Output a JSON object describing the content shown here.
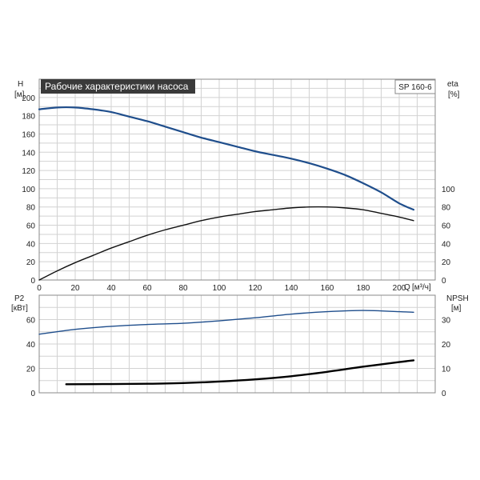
{
  "chart_data": [
    {
      "type": "line",
      "title": "Рабочие характеристики насоса",
      "model": "SP 160-6",
      "xlabel": "Q",
      "xunit": "[м³/ч]",
      "xlim": [
        0,
        220
      ],
      "xticks": [
        0,
        20,
        40,
        60,
        80,
        100,
        120,
        140,
        160,
        180,
        200
      ],
      "ylabel_left": "H",
      "yunit_left": "[м]",
      "ylim_left": [
        0,
        220
      ],
      "yticks_left": [
        0,
        20,
        40,
        60,
        80,
        100,
        120,
        140,
        160,
        180,
        200
      ],
      "ylabel_right": "eta",
      "yunit_right": "[%]",
      "ylim_right": [
        0,
        220
      ],
      "yticks_right": [
        0,
        20,
        40,
        60,
        80,
        100
      ],
      "grid": true,
      "series": [
        {
          "axis": "left",
          "color": "#1f4e8c",
          "x": [
            0,
            10,
            20,
            30,
            40,
            50,
            60,
            70,
            80,
            90,
            100,
            110,
            120,
            130,
            140,
            150,
            160,
            170,
            180,
            190,
            200,
            208
          ],
          "y": [
            187,
            189,
            189,
            187,
            184,
            179,
            174,
            168,
            162,
            156,
            151,
            146,
            141,
            137,
            133,
            128,
            122,
            115,
            106,
            96,
            84,
            77
          ]
        },
        {
          "axis": "right",
          "color": "#111111",
          "x": [
            0,
            10,
            20,
            30,
            40,
            50,
            60,
            70,
            80,
            90,
            100,
            110,
            120,
            130,
            140,
            150,
            160,
            170,
            180,
            190,
            200,
            208
          ],
          "y": [
            0,
            10,
            19,
            27,
            35,
            42,
            49,
            55,
            60,
            65,
            69,
            72,
            75,
            77,
            79,
            80,
            80,
            79,
            77,
            73,
            69,
            65
          ]
        }
      ]
    },
    {
      "type": "line",
      "xlim": [
        0,
        220
      ],
      "ylabel_left": "P2",
      "yunit_left": "[кВт]",
      "ylim_left": [
        0,
        80
      ],
      "yticks_left": [
        0,
        20,
        40,
        60
      ],
      "ylabel_right": "NPSH",
      "yunit_right": "[м]",
      "ylim_right": [
        0,
        40
      ],
      "yticks_right": [
        0,
        10,
        20,
        30
      ],
      "grid": true,
      "series": [
        {
          "axis": "left",
          "color": "#1f4e8c",
          "x": [
            0,
            20,
            40,
            60,
            80,
            100,
            120,
            140,
            160,
            180,
            200,
            208
          ],
          "y": [
            48,
            52,
            54.5,
            56,
            57,
            59,
            61.5,
            64.5,
            66.5,
            67.5,
            66.5,
            66
          ]
        },
        {
          "axis": "right",
          "color": "#000000",
          "x": [
            15,
            40,
            60,
            80,
            100,
            120,
            140,
            160,
            180,
            200,
            208
          ],
          "y": [
            3.5,
            3.6,
            3.7,
            4,
            4.6,
            5.5,
            6.8,
            8.6,
            10.7,
            12.6,
            13.3
          ]
        }
      ]
    }
  ]
}
